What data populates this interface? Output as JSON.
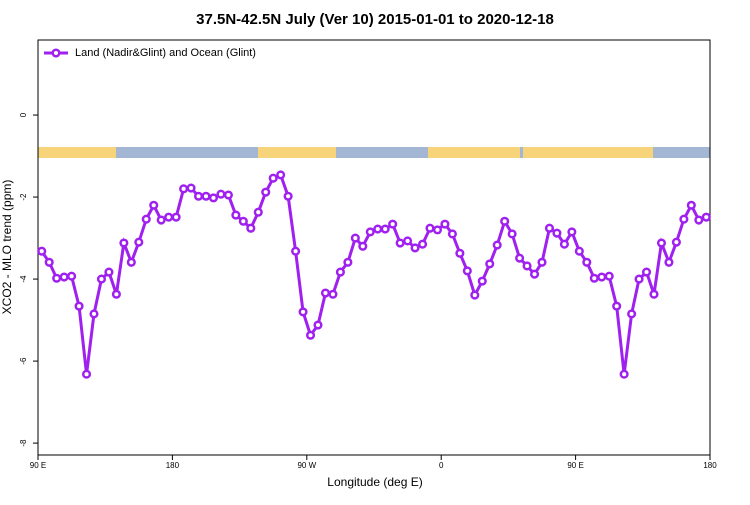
{
  "chart_data": {
    "type": "line",
    "title": "37.5N-42.5N July (Ver 10)   2015-01-01 to 2020-12-18",
    "xlabel": "Longitude (deg E)",
    "ylabel": "XCO2 - MLO trend (ppm)",
    "x": [
      92.5,
      97.5,
      102.5,
      107.5,
      112.5,
      117.5,
      122.5,
      127.5,
      132.5,
      137.5,
      142.5,
      147.5,
      152.5,
      157.5,
      162.5,
      167.5,
      172.5,
      177.5,
      182.5,
      187.5,
      192.5,
      197.5,
      202.5,
      207.5,
      212.5,
      217.5,
      222.5,
      227.5,
      232.5,
      237.5,
      242.5,
      247.5,
      252.5,
      257.5,
      262.5,
      267.5,
      272.5,
      277.5,
      282.5,
      287.5,
      292.5,
      297.5,
      302.5,
      307.5,
      312.5,
      317.5,
      322.5,
      327.5,
      332.5,
      337.5,
      342.5,
      347.5,
      352.5,
      357.5,
      362.5,
      367.5,
      372.5,
      377.5,
      382.5,
      387.5,
      392.5,
      397.5,
      402.5,
      407.5,
      412.5,
      417.5,
      422.5,
      427.5,
      432.5,
      437.5,
      442.5,
      447.5,
      452.5,
      457.5,
      462.5,
      467.5,
      472.5,
      477.5,
      482.5,
      487.5,
      492.5,
      497.5,
      502.5,
      507.5,
      512.5,
      517.5,
      522.5,
      527.5,
      532.5,
      537.5
    ],
    "series": [
      {
        "name": "Land (Nadir&Glint) and Ocean (Glint)",
        "color": "#a020f0",
        "values": [
          -3.32,
          -3.59,
          -3.98,
          -3.95,
          -3.93,
          -4.66,
          -6.32,
          -4.85,
          -4.0,
          -3.83,
          -4.37,
          -3.12,
          -3.59,
          -3.1,
          -2.54,
          -2.2,
          -2.56,
          -2.49,
          -2.49,
          -1.8,
          -1.78,
          -1.98,
          -1.98,
          -2.02,
          -1.93,
          -1.95,
          -2.44,
          -2.59,
          -2.76,
          -2.37,
          -1.88,
          -1.54,
          -1.46,
          -1.98,
          -3.32,
          -4.8,
          -5.37,
          -5.12,
          -4.34,
          -4.37,
          -3.83,
          -3.59,
          -3.0,
          -3.2,
          -2.85,
          -2.78,
          -2.78,
          -2.66,
          -3.12,
          -3.07,
          -3.24,
          -3.15,
          -2.76,
          -2.8,
          -2.66,
          -2.9,
          -3.37,
          -3.8,
          -4.39,
          -4.05,
          -3.63,
          -3.17,
          -2.59,
          -2.9,
          -3.49,
          -3.68,
          -3.88,
          -3.59,
          -2.76,
          -2.88,
          -3.15,
          -2.85,
          -3.32,
          -3.59,
          -3.98,
          -3.95,
          -3.93,
          -4.66,
          -6.32,
          -4.85,
          -4.0,
          -3.83,
          -4.37,
          -3.12,
          -3.59,
          -3.1,
          -2.54,
          -2.2,
          -2.56,
          -2.49
        ]
      }
    ],
    "xlim": [
      90,
      540
    ],
    "xticks": [
      {
        "value": 90,
        "label": "90 E"
      },
      {
        "value": 180,
        "label": "180"
      },
      {
        "value": 270,
        "label": "90 W"
      },
      {
        "value": 360,
        "label": "0"
      },
      {
        "value": 450,
        "label": "90 E"
      },
      {
        "value": 540,
        "label": "180"
      }
    ],
    "ylim": [
      -8.29,
      1.83
    ],
    "yticks": [
      -8,
      -6,
      -4,
      -2,
      0
    ],
    "legend": "top-left"
  }
}
